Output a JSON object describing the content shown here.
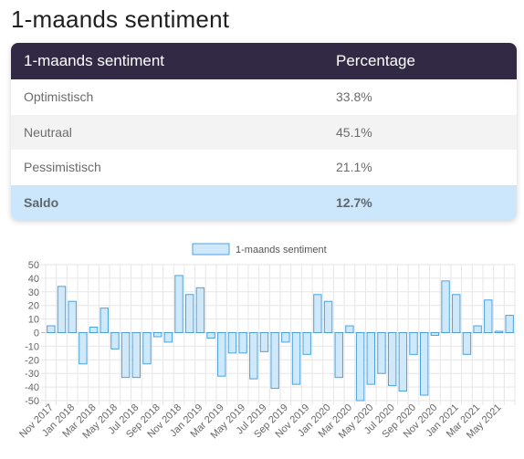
{
  "page": {
    "title": "1-maands sentiment"
  },
  "table": {
    "headers": [
      "1-maands sentiment",
      "Percentage"
    ],
    "rows": [
      {
        "label": "Optimistisch",
        "value": "33.8%"
      },
      {
        "label": "Neutraal",
        "value": "45.1%"
      },
      {
        "label": "Pessimistisch",
        "value": "21.1%"
      }
    ],
    "total": {
      "label": "Saldo",
      "value": "12.7%"
    }
  },
  "colors": {
    "header_bg": "#322a44",
    "bar_fill": "#cfe8fa",
    "bar_stroke": "#4aa3df",
    "total_bg": "#cce6fc"
  },
  "chart_data": {
    "type": "bar",
    "legend": "1-maands sentiment",
    "legend_position": "top-center",
    "grid": true,
    "ylim": [
      -50,
      50
    ],
    "yticks": [
      50,
      40,
      30,
      20,
      10,
      0,
      -10,
      -20,
      -30,
      -40,
      -50
    ],
    "categories": [
      "Nov 2017",
      "Dec 2017",
      "Jan 2018",
      "Feb 2018",
      "Mar 2018",
      "Apr 2018",
      "May 2018",
      "Jun 2018",
      "Jul 2018",
      "Aug 2018",
      "Sep 2018",
      "Oct 2018",
      "Nov 2018",
      "Dec 2018",
      "Jan 2019",
      "Feb 2019",
      "Mar 2019",
      "Apr 2019",
      "May 2019",
      "Jun 2019",
      "Jul 2019",
      "Aug 2019",
      "Sep 2019",
      "Oct 2019",
      "Nov 2019",
      "Dec 2019",
      "Jan 2020",
      "Feb 2020",
      "Mar 2020",
      "Apr 2020",
      "May 2020",
      "Jun 2020",
      "Jul 2020",
      "Aug 2020",
      "Sep 2020",
      "Oct 2020",
      "Nov 2020",
      "Dec 2020",
      "Jan 2021",
      "Feb 2021",
      "Mar 2021",
      "Apr 2021",
      "May 2021",
      "Jun 2021"
    ],
    "tick_labels": [
      "Nov 2017",
      "Jan 2018",
      "Mar 2018",
      "May 2018",
      "Jul 2018",
      "Sep 2018",
      "Nov 2018",
      "Jan 2019",
      "Mar 2019",
      "May 2019",
      "Jul 2019",
      "Sep 2019",
      "Nov 2019",
      "Jan 2020",
      "Mar 2020",
      "May 2020",
      "Jul 2020",
      "Sep 2020",
      "Nov 2020",
      "Jan 2021",
      "Mar 2021",
      "May 2021"
    ],
    "series": [
      {
        "name": "1-maands sentiment",
        "values": [
          5,
          34,
          23,
          -23,
          4,
          18,
          -12,
          -33,
          -33,
          -23,
          -3,
          -7,
          42,
          28,
          33,
          -4,
          -32,
          -15,
          -15,
          -34,
          -14,
          -41,
          -7,
          -38,
          -16,
          28,
          23,
          -33,
          5,
          -50,
          -38,
          -30,
          -39,
          -43,
          -16,
          -46,
          -2,
          38,
          28,
          -16,
          5,
          24,
          1,
          12.7
        ]
      }
    ]
  }
}
